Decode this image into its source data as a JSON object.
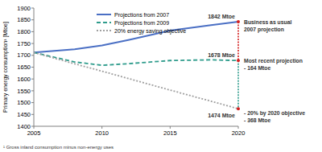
{
  "chart_data": {
    "type": "line",
    "y_label": "Primary energy consumption¹ [Mtoe]",
    "footnote": "¹ Gross inland consumption minus non-energy uses",
    "x": [
      2005,
      2008,
      2010,
      2012,
      2015,
      2018,
      2020
    ],
    "series": [
      {
        "name": "Projections from 2007",
        "color": "#4a6fc4",
        "line_style": "solid",
        "values": [
          1712,
          1726,
          1742,
          1766,
          1805,
          1828,
          1842
        ]
      },
      {
        "name": "Projections from 2009",
        "color": "#2f9c8c",
        "line_style": "dashed",
        "values": [
          1712,
          1672,
          1658,
          1665,
          1678,
          1681,
          1678
        ]
      },
      {
        "name": "20% energy saving objective",
        "color": "#a0a0a0",
        "line_style": "dotted",
        "values": [
          1712,
          1664,
          1633,
          1601,
          1553,
          1506,
          1474
        ]
      }
    ],
    "xlim": [
      2005,
      2020
    ],
    "xticks": [
      2005,
      2010,
      2015,
      2020
    ],
    "ylim": [
      1400,
      1900
    ],
    "yticks": [
      1400,
      1450,
      1500,
      1550,
      1600,
      1650,
      1700,
      1750,
      1800,
      1850,
      1900
    ],
    "grid": false,
    "legend": "top-left",
    "annotations": [
      {
        "label": "1842 Mtoe",
        "x": 2020,
        "value": 1842,
        "text": [
          "Business as usual",
          "2007 projection"
        ]
      },
      {
        "label": "1678 Mtoe",
        "x": 2020,
        "value": 1678,
        "text": [
          "Most recent projection",
          "- 164 Mtoe"
        ]
      },
      {
        "label": "1474 Mtoe",
        "x": 2020,
        "value": 1474,
        "text": [
          "- 20% by 2020 objective",
          "- 368 Mtoe"
        ]
      }
    ]
  }
}
